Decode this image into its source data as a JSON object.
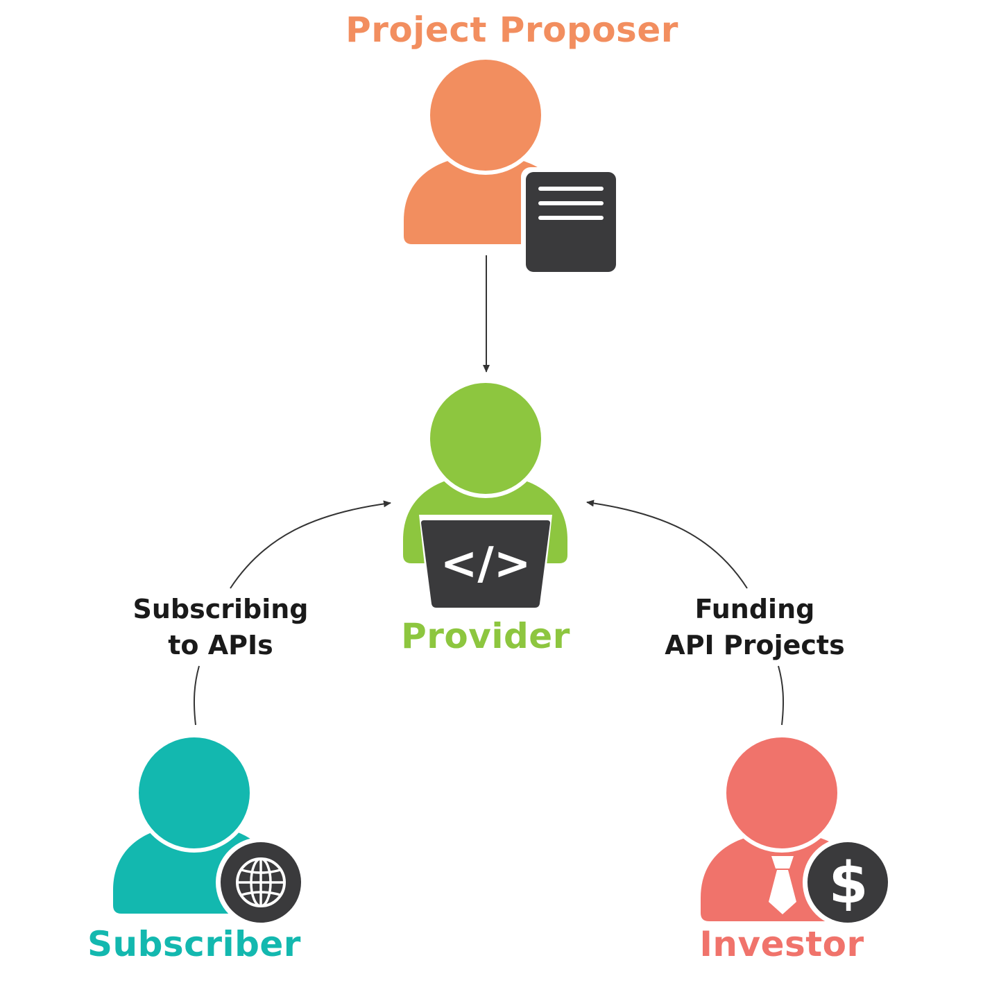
{
  "colors": {
    "proposer": "#F28E5F",
    "provider": "#8DC63F",
    "subscriber": "#13B8AF",
    "investor": "#F0736B",
    "badge": "#3A3A3C",
    "arrow": "#333333",
    "edge_text": "#1a1a1a"
  },
  "nodes": {
    "proposer": {
      "label": "Project Proposer",
      "badge_icon": "document-icon"
    },
    "provider": {
      "label": "Provider",
      "badge_icon": "code-laptop-icon",
      "badge_text": "</>"
    },
    "subscriber": {
      "label": "Subscriber",
      "badge_icon": "globe-icon"
    },
    "investor": {
      "label": "Investor",
      "badge_icon": "dollar-icon",
      "badge_text": "$"
    }
  },
  "edges": [
    {
      "from": "Project Proposer",
      "to": "Provider",
      "label_lines": []
    },
    {
      "from": "Subscriber",
      "to": "Provider",
      "label_lines": [
        "Subscribing",
        "to APIs"
      ]
    },
    {
      "from": "Investor",
      "to": "Provider",
      "label_lines": [
        "Funding",
        "API Projects"
      ]
    }
  ]
}
